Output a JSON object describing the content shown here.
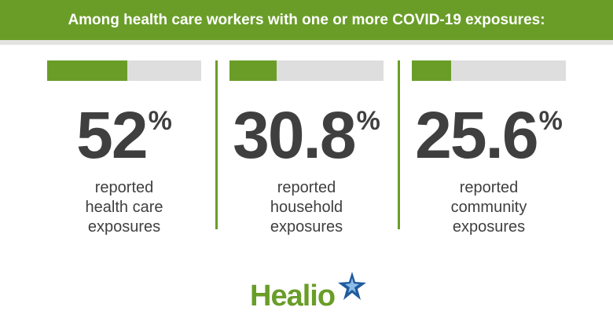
{
  "header": {
    "title": "Among health care workers with one or more COVID-19 exposures:"
  },
  "stats": [
    {
      "value": "52",
      "unit": "%",
      "fill_fraction": 0.52,
      "lines": [
        "reported",
        "health care",
        "exposures"
      ]
    },
    {
      "value": "30.8",
      "unit": "%",
      "fill_fraction": 0.308,
      "lines": [
        "reported",
        "household",
        "exposures"
      ]
    },
    {
      "value": "25.6",
      "unit": "%",
      "fill_fraction": 0.256,
      "lines": [
        "reported",
        "community",
        "exposures"
      ]
    }
  ],
  "logo": {
    "text": "Healio"
  },
  "colors": {
    "accent": "#6a9d28",
    "track": "#dedede",
    "text": "#3f3f3f",
    "star_blue": "#1f5c9e"
  }
}
